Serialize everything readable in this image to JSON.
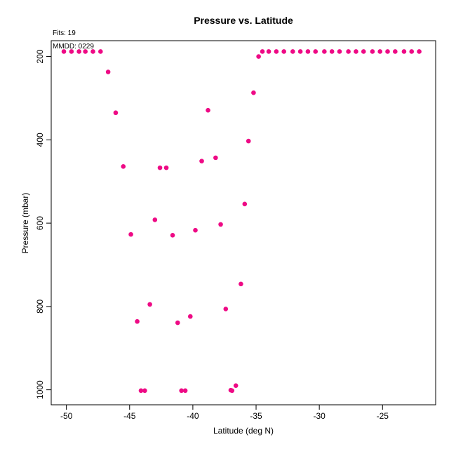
{
  "chart_data": {
    "type": "scatter",
    "title": "Pressure vs. Latitude",
    "subtitle": "Fits: 19",
    "annotation": "MMDD: 0229",
    "xlabel": "Latitude (deg N)",
    "ylabel": "Pressure (mbar)",
    "xlim": [
      -51.2,
      -20.8
    ],
    "ylim": [
      1036,
      162
    ],
    "x_ticks": [
      -50,
      -45,
      -40,
      -35,
      -30,
      -25
    ],
    "y_ticks": [
      200,
      400,
      600,
      800,
      1000
    ],
    "marker_color": "#ee0a85",
    "grid": false,
    "series": [
      {
        "points": [
          [
            -50.2,
            188
          ],
          [
            -49.6,
            188
          ],
          [
            -49.0,
            188
          ],
          [
            -48.5,
            188
          ],
          [
            -47.9,
            188
          ],
          [
            -47.3,
            188
          ],
          [
            -46.7,
            237
          ],
          [
            -46.1,
            335
          ],
          [
            -45.5,
            464
          ],
          [
            -44.9,
            627
          ],
          [
            -44.4,
            836
          ],
          [
            -44.1,
            1002
          ],
          [
            -43.8,
            1002
          ],
          [
            -43.4,
            795
          ],
          [
            -43.0,
            592
          ],
          [
            -42.6,
            467
          ],
          [
            -42.1,
            467
          ],
          [
            -41.6,
            629
          ],
          [
            -41.2,
            839
          ],
          [
            -40.9,
            1002
          ],
          [
            -40.6,
            1002
          ],
          [
            -40.2,
            824
          ],
          [
            -39.8,
            617
          ],
          [
            -39.3,
            451
          ],
          [
            -38.8,
            329
          ],
          [
            -38.2,
            443
          ],
          [
            -37.8,
            603
          ],
          [
            -37.4,
            806
          ],
          [
            -37.0,
            1001
          ],
          [
            -36.9,
            1002
          ],
          [
            -36.6,
            990
          ],
          [
            -36.2,
            746
          ],
          [
            -35.9,
            554
          ],
          [
            -35.6,
            403
          ],
          [
            -35.2,
            287
          ],
          [
            -34.8,
            200
          ],
          [
            -34.5,
            188
          ],
          [
            -34.0,
            188
          ],
          [
            -33.4,
            188
          ],
          [
            -32.8,
            188
          ],
          [
            -32.1,
            188
          ],
          [
            -31.5,
            188
          ],
          [
            -30.9,
            188
          ],
          [
            -30.3,
            188
          ],
          [
            -29.6,
            188
          ],
          [
            -29.0,
            188
          ],
          [
            -28.4,
            188
          ],
          [
            -27.7,
            188
          ],
          [
            -27.1,
            188
          ],
          [
            -26.5,
            188
          ],
          [
            -25.8,
            188
          ],
          [
            -25.2,
            188
          ],
          [
            -24.6,
            188
          ],
          [
            -24.0,
            188
          ],
          [
            -23.3,
            188
          ],
          [
            -22.7,
            188
          ],
          [
            -22.1,
            188
          ]
        ]
      }
    ]
  }
}
